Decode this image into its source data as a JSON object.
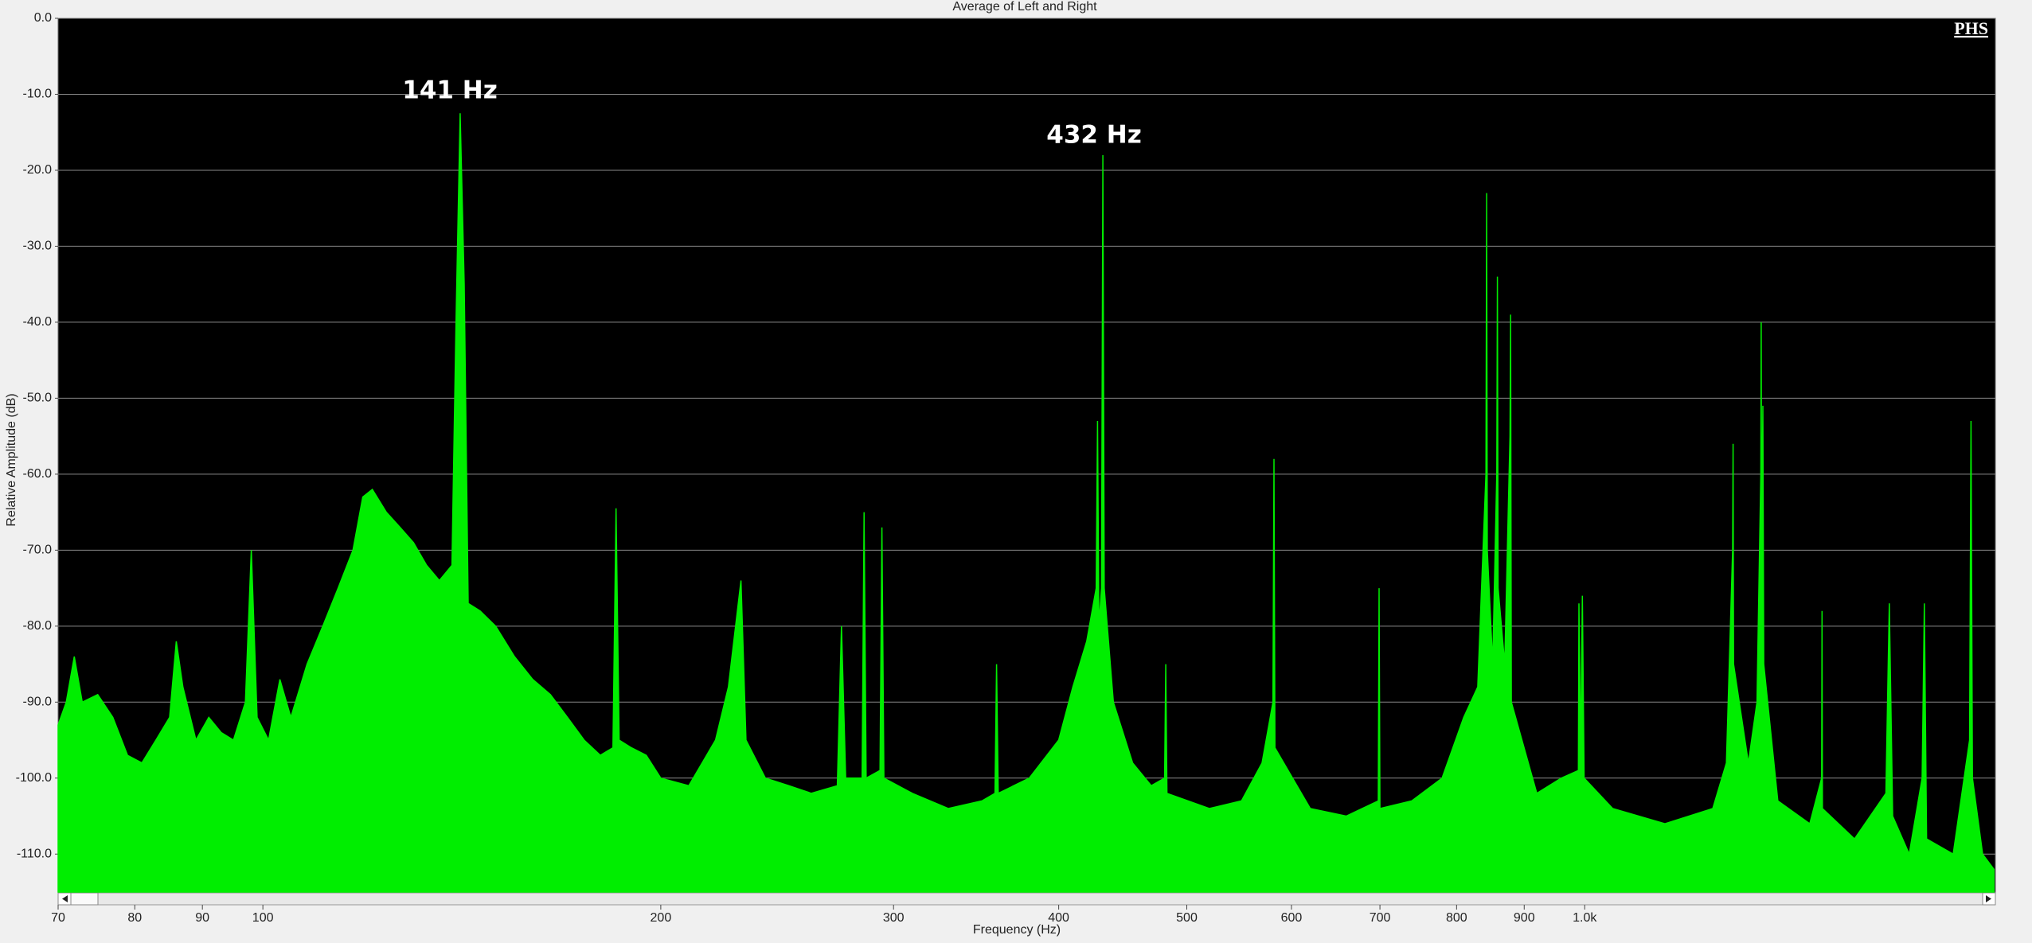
{
  "chart_data": {
    "type": "area",
    "title": "Average of Left and Right",
    "x_label": "Frequency (Hz)",
    "y_label": "Relative Amplitude (dB)",
    "logo": "PHS",
    "annotations": [
      "141 Hz",
      "432 Hz"
    ],
    "log_x": true,
    "grid": true,
    "background": "#000000",
    "xlim": [
      70,
      2045
    ],
    "ylim": [
      -115,
      0
    ],
    "xticks": [
      70,
      80,
      90,
      100,
      200,
      300,
      400,
      500,
      600,
      700,
      800,
      900,
      {
        "value": 1000,
        "label": "1.0k"
      }
    ],
    "yticks": [
      {
        "value": 0,
        "label": "0.0"
      },
      {
        "value": -10,
        "label": "-10.0"
      },
      {
        "value": -20,
        "label": "-20.0"
      },
      {
        "value": -30,
        "label": "-30.0"
      },
      {
        "value": -40,
        "label": "-40.0"
      },
      {
        "value": -50,
        "label": "-50.0"
      },
      {
        "value": -60,
        "label": "-60.0"
      },
      {
        "value": -70,
        "label": "-70.0"
      },
      {
        "value": -80,
        "label": "-80.0"
      },
      {
        "value": -90,
        "label": "-90.0"
      },
      {
        "value": -100,
        "label": "-100.0"
      },
      {
        "value": -110,
        "label": "-110.0"
      }
    ],
    "x": [
      70,
      71,
      72,
      73,
      75,
      77,
      79,
      81,
      83,
      85,
      86,
      87,
      89,
      91,
      93,
      95,
      97,
      98,
      99,
      101,
      103,
      105,
      108,
      111,
      114,
      117,
      119,
      121,
      124,
      127,
      130,
      133,
      136,
      139,
      140,
      141,
      142,
      143,
      146,
      150,
      155,
      160,
      165,
      170,
      175,
      180,
      184,
      185,
      186,
      190,
      195,
      200,
      210,
      220,
      225,
      230,
      232,
      240,
      250,
      260,
      272,
      274,
      276,
      284,
      285,
      286,
      293,
      294,
      295,
      310,
      330,
      350,
      358,
      359,
      360,
      380,
      400,
      410,
      420,
      427,
      428,
      429,
      431,
      432,
      433,
      440,
      455,
      470,
      481,
      482,
      483,
      520,
      550,
      570,
      581,
      582,
      583,
      620,
      660,
      698,
      699,
      700,
      740,
      780,
      810,
      830,
      842,
      843,
      844,
      852,
      858,
      859,
      860,
      870,
      878,
      879,
      880,
      920,
      960,
      989,
      990,
      993,
      996,
      999,
      1050,
      1150,
      1250,
      1280,
      1294,
      1295,
      1296,
      1330,
      1350,
      1359,
      1360,
      1361,
      1364,
      1366,
      1400,
      1480,
      1511,
      1512,
      1513,
      1600,
      1690,
      1700,
      1710,
      1760,
      1800,
      1807,
      1814,
      1900,
      1955,
      1960,
      1965,
      2000,
      2040
    ],
    "series": [
      {
        "color": "#00ee00",
        "values": [
          -93,
          -90,
          -84,
          -90,
          -89,
          -92,
          -97,
          -98,
          -95,
          -92,
          -82,
          -88,
          -95,
          -92,
          -94,
          -95,
          -90,
          -70,
          -92,
          -95,
          -87,
          -92,
          -85,
          -80,
          -75,
          -70,
          -63,
          -62,
          -65,
          -67,
          -69,
          -72,
          -74,
          -72,
          -40,
          -12.5,
          -35,
          -77,
          -78,
          -80,
          -84,
          -87,
          -89,
          -92,
          -95,
          -97,
          -96,
          -64.5,
          -95,
          -96,
          -97,
          -100,
          -101,
          -95,
          -88,
          -74,
          -95,
          -100,
          -101,
          -102,
          -101,
          -80,
          -100,
          -100,
          -65,
          -100,
          -99,
          -67,
          -100,
          -102,
          -104,
          -103,
          -102,
          -85,
          -102,
          -100,
          -95,
          -88,
          -82,
          -75,
          -53,
          -80,
          -75,
          -18,
          -75,
          -90,
          -98,
          -101,
          -100,
          -85,
          -102,
          -104,
          -103,
          -98,
          -90,
          -58,
          -96,
          -104,
          -105,
          -103,
          -75,
          -104,
          -103,
          -100,
          -92,
          -88,
          -60,
          -23,
          -70,
          -85,
          -60,
          -34,
          -75,
          -85,
          -55,
          -39,
          -90,
          -102,
          -100,
          -99,
          -77,
          -97,
          -76,
          -100,
          -104,
          -106,
          -104,
          -98,
          -70,
          -56,
          -85,
          -98,
          -90,
          -60,
          -40,
          -70,
          -51,
          -85,
          -103,
          -106,
          -100,
          -78,
          -104,
          -108,
          -102,
          -77,
          -105,
          -110,
          -100,
          -77,
          -108,
          -110,
          -95,
          -53,
          -100,
          -110,
          -112
        ]
      }
    ]
  }
}
